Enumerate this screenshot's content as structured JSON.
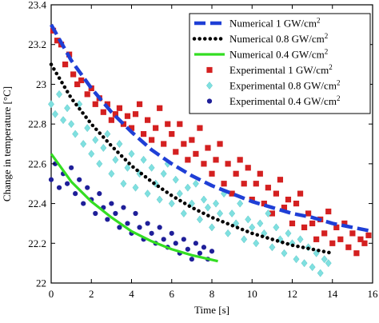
{
  "chart_data": {
    "type": "scatter",
    "xlabel": "Time [s]",
    "ylabel": "Change in temperature [°C]",
    "xlim": [
      0,
      16
    ],
    "ylim": [
      22,
      23.4
    ],
    "xticks": [
      "0",
      "2",
      "4",
      "6",
      "8",
      "10",
      "12",
      "14",
      "16"
    ],
    "yticks": [
      "22",
      "22.2",
      "22.4",
      "22.6",
      "22.8",
      "23",
      "23.2",
      "23.4"
    ],
    "grid": false,
    "legend_position": "top-right",
    "series": [
      {
        "name": "Numerical 1 GW/cm2",
        "name_base": "Numerical 1 GW/cm",
        "name_sup": "2",
        "kind": "line",
        "style": "dashed",
        "color": "#1f3fd6",
        "x": [
          0,
          1,
          2,
          3,
          4,
          5,
          6,
          7,
          8,
          9,
          10,
          11,
          12,
          13,
          14,
          15,
          16
        ],
        "y": [
          23.3,
          23.12,
          22.98,
          22.86,
          22.76,
          22.67,
          22.6,
          22.54,
          22.49,
          22.45,
          22.41,
          22.38,
          22.35,
          22.33,
          22.3,
          22.28,
          22.26
        ]
      },
      {
        "name": "Numerical 0.8 GW/cm2",
        "name_base": "Numerical 0.8 GW/cm",
        "name_sup": "2",
        "kind": "line",
        "style": "dotted",
        "color": "#000000",
        "x": [
          0,
          1,
          2,
          3,
          4,
          5,
          6,
          7,
          8,
          9,
          10,
          11,
          12,
          13,
          14
        ],
        "y": [
          23.1,
          22.93,
          22.8,
          22.69,
          22.59,
          22.51,
          22.44,
          22.38,
          22.33,
          22.29,
          22.25,
          22.22,
          22.19,
          22.17,
          22.15
        ]
      },
      {
        "name": "Numerical 0.4 GW/cm2",
        "name_base": "Numerical 0.4 GW/cm",
        "name_sup": "2",
        "kind": "line",
        "style": "solid",
        "color": "#33dd22",
        "x": [
          0,
          1,
          2,
          3,
          4,
          5,
          6,
          7,
          8.3
        ],
        "y": [
          22.65,
          22.51,
          22.41,
          22.33,
          22.26,
          22.21,
          22.17,
          22.14,
          22.11
        ]
      },
      {
        "name": "Experimental 1 GW/cm2",
        "name_base": "Experimental 1 GW/cm",
        "name_sup": "2",
        "kind": "scatter",
        "marker": "square",
        "color": "#d42020",
        "x": [
          0.1,
          0.3,
          0.5,
          0.7,
          0.9,
          1.1,
          1.3,
          1.5,
          1.8,
          2.0,
          2.2,
          2.4,
          2.6,
          2.8,
          3.0,
          3.2,
          3.4,
          3.6,
          3.8,
          4.0,
          4.2,
          4.4,
          4.6,
          4.8,
          5.0,
          5.2,
          5.4,
          5.6,
          5.8,
          6.0,
          6.2,
          6.4,
          6.6,
          6.8,
          7.0,
          7.2,
          7.4,
          7.6,
          7.8,
          8.0,
          8.2,
          8.4,
          8.6,
          8.8,
          9.0,
          9.2,
          9.4,
          9.6,
          9.8,
          10.0,
          10.2,
          10.4,
          10.6,
          10.8,
          11.0,
          11.2,
          11.4,
          11.6,
          11.8,
          12.0,
          12.2,
          12.4,
          12.6,
          12.8,
          13.0,
          13.2,
          13.4,
          13.6,
          13.8,
          14.0,
          14.2,
          14.4,
          14.6,
          14.8,
          15.0,
          15.2,
          15.4,
          15.6,
          15.8
        ],
        "y": [
          23.27,
          23.22,
          23.2,
          23.1,
          23.15,
          23.05,
          23.0,
          23.02,
          22.95,
          22.98,
          22.9,
          22.93,
          22.86,
          22.9,
          22.82,
          22.85,
          22.88,
          22.8,
          22.84,
          22.78,
          22.85,
          22.9,
          22.75,
          22.82,
          22.72,
          22.78,
          22.88,
          22.7,
          22.8,
          22.75,
          22.66,
          22.8,
          22.7,
          22.62,
          22.72,
          22.65,
          22.78,
          22.6,
          22.68,
          22.55,
          22.62,
          22.7,
          22.5,
          22.6,
          22.45,
          22.55,
          22.62,
          22.5,
          22.58,
          22.42,
          22.5,
          22.55,
          22.4,
          22.48,
          22.35,
          22.45,
          22.52,
          22.38,
          22.42,
          22.3,
          22.4,
          22.45,
          22.28,
          22.35,
          22.3,
          22.22,
          22.32,
          22.25,
          22.36,
          22.2,
          22.28,
          22.22,
          22.3,
          22.18,
          22.25,
          22.15,
          22.22,
          22.2,
          22.24
        ]
      },
      {
        "name": "Experimental 0.8 GW/cm2",
        "name_base": "Experimental 0.8 GW/cm",
        "name_sup": "2",
        "kind": "scatter",
        "marker": "diamond",
        "color": "#7fe0e0",
        "x": [
          0.0,
          0.2,
          0.4,
          0.6,
          0.8,
          1.0,
          1.2,
          1.4,
          1.6,
          1.8,
          2.0,
          2.2,
          2.4,
          2.6,
          2.8,
          3.0,
          3.2,
          3.4,
          3.6,
          3.8,
          4.0,
          4.2,
          4.4,
          4.6,
          4.8,
          5.0,
          5.2,
          5.4,
          5.6,
          5.8,
          6.0,
          6.2,
          6.4,
          6.6,
          6.8,
          7.0,
          7.2,
          7.4,
          7.6,
          7.8,
          8.0,
          8.2,
          8.4,
          8.6,
          8.8,
          9.0,
          9.2,
          9.4,
          9.6,
          9.8,
          10.0,
          10.2,
          10.4,
          10.6,
          10.8,
          11.0,
          11.2,
          11.4,
          11.6,
          11.8,
          12.0,
          12.2,
          12.4,
          12.6,
          12.8,
          13.0,
          13.2,
          13.4,
          13.6,
          13.8
        ],
        "y": [
          22.9,
          22.85,
          22.95,
          22.82,
          22.88,
          22.8,
          22.75,
          22.9,
          22.7,
          22.78,
          22.65,
          22.72,
          22.6,
          22.68,
          22.75,
          22.55,
          22.62,
          22.7,
          22.5,
          22.58,
          22.65,
          22.48,
          22.55,
          22.62,
          22.45,
          22.58,
          22.5,
          22.42,
          22.55,
          22.6,
          22.4,
          22.52,
          22.45,
          22.35,
          22.48,
          22.4,
          22.5,
          22.32,
          22.42,
          22.38,
          22.28,
          22.4,
          22.35,
          22.45,
          22.25,
          22.35,
          22.3,
          22.4,
          22.22,
          22.32,
          22.28,
          22.2,
          22.3,
          22.25,
          22.35,
          22.18,
          22.28,
          22.22,
          22.15,
          22.25,
          22.2,
          22.12,
          22.22,
          22.1,
          22.18,
          22.08,
          22.15,
          22.05,
          22.12,
          22.1
        ]
      },
      {
        "name": "Experimental 0.4 GW/cm2",
        "name_base": "Experimental 0.4 GW/cm",
        "name_sup": "2",
        "kind": "scatter",
        "marker": "circle",
        "color": "#1f1f99",
        "x": [
          0.0,
          0.2,
          0.4,
          0.6,
          0.8,
          1.0,
          1.2,
          1.4,
          1.6,
          1.8,
          2.0,
          2.2,
          2.4,
          2.6,
          2.8,
          3.0,
          3.2,
          3.4,
          3.6,
          3.8,
          4.0,
          4.2,
          4.4,
          4.6,
          4.8,
          5.0,
          5.2,
          5.4,
          5.6,
          5.8,
          6.0,
          6.2,
          6.4,
          6.6,
          6.8,
          7.0,
          7.2,
          7.4,
          7.6,
          7.8,
          8.0
        ],
        "y": [
          22.52,
          22.6,
          22.48,
          22.55,
          22.5,
          22.58,
          22.45,
          22.52,
          22.4,
          22.48,
          22.42,
          22.35,
          22.45,
          22.38,
          22.32,
          22.4,
          22.35,
          22.28,
          22.38,
          22.3,
          22.25,
          22.35,
          22.28,
          22.22,
          22.3,
          22.25,
          22.2,
          22.28,
          22.22,
          22.18,
          22.25,
          22.2,
          22.15,
          22.22,
          22.17,
          22.12,
          22.2,
          22.15,
          22.18,
          22.12,
          22.16
        ]
      }
    ]
  }
}
